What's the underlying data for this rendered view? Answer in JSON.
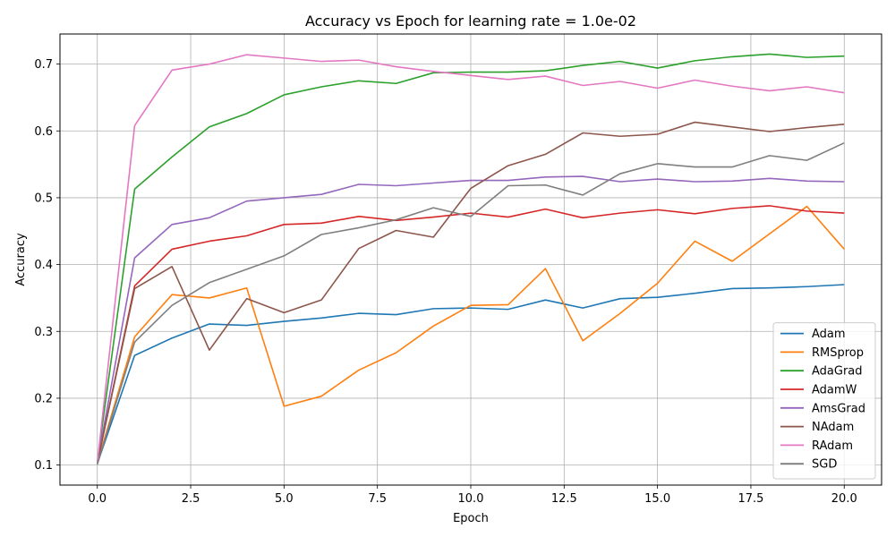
{
  "chart_data": {
    "type": "line",
    "title": "Accuracy vs Epoch for learning rate = 1.0e-02",
    "xlabel": "Epoch",
    "ylabel": "Accuracy",
    "xlim": [
      -1.0,
      21.0
    ],
    "ylim": [
      0.07,
      0.745
    ],
    "xticks": [
      0.0,
      2.5,
      5.0,
      7.5,
      10.0,
      12.5,
      15.0,
      17.5,
      20.0
    ],
    "xtick_labels": [
      "0.0",
      "2.5",
      "5.0",
      "7.5",
      "10.0",
      "12.5",
      "15.0",
      "17.5",
      "20.0"
    ],
    "yticks": [
      0.1,
      0.2,
      0.3,
      0.4,
      0.5,
      0.6,
      0.7
    ],
    "ytick_labels": [
      "0.1",
      "0.2",
      "0.3",
      "0.4",
      "0.5",
      "0.6",
      "0.7"
    ],
    "grid": true,
    "legend_position": "lower-right",
    "x": [
      0,
      1,
      2,
      3,
      4,
      5,
      6,
      7,
      8,
      9,
      10,
      11,
      12,
      13,
      14,
      15,
      16,
      17,
      18,
      19,
      20
    ],
    "series": [
      {
        "name": "Adam",
        "color": "#1f77b4",
        "values": [
          0.102,
          0.264,
          0.29,
          0.311,
          0.309,
          0.315,
          0.32,
          0.327,
          0.325,
          0.334,
          0.335,
          0.333,
          0.347,
          0.335,
          0.349,
          0.351,
          0.357,
          0.364,
          0.365,
          0.367,
          0.37
        ]
      },
      {
        "name": "RMSprop",
        "color": "#ff7f0e",
        "values": [
          0.103,
          0.292,
          0.355,
          0.35,
          0.365,
          0.188,
          0.203,
          0.242,
          0.268,
          0.308,
          0.339,
          0.34,
          0.394,
          0.286,
          0.327,
          0.372,
          0.435,
          0.405,
          0.446,
          0.487,
          0.423
        ]
      },
      {
        "name": "AdaGrad",
        "color": "#2ca02c",
        "values": [
          0.105,
          0.513,
          0.561,
          0.606,
          0.626,
          0.654,
          0.666,
          0.675,
          0.671,
          0.687,
          0.688,
          0.688,
          0.69,
          0.698,
          0.704,
          0.694,
          0.705,
          0.711,
          0.715,
          0.71,
          0.712
        ]
      },
      {
        "name": "AdamW",
        "color": "#d62728",
        "values": [
          0.103,
          0.368,
          0.423,
          0.435,
          0.443,
          0.46,
          0.462,
          0.472,
          0.466,
          0.471,
          0.477,
          0.471,
          0.483,
          0.47,
          0.477,
          0.482,
          0.476,
          0.484,
          0.488,
          0.48,
          0.477
        ]
      },
      {
        "name": "AmsGrad",
        "color": "#9467bd",
        "values": [
          0.104,
          0.41,
          0.46,
          0.47,
          0.495,
          0.5,
          0.505,
          0.52,
          0.518,
          0.522,
          0.526,
          0.526,
          0.531,
          0.532,
          0.524,
          0.528,
          0.524,
          0.525,
          0.529,
          0.525,
          0.524
        ]
      },
      {
        "name": "NAdam",
        "color": "#8c564b",
        "values": [
          0.103,
          0.364,
          0.397,
          0.272,
          0.349,
          0.328,
          0.347,
          0.424,
          0.451,
          0.441,
          0.514,
          0.548,
          0.565,
          0.597,
          0.592,
          0.595,
          0.613,
          0.606,
          0.599,
          0.605,
          0.61
        ]
      },
      {
        "name": "RAdam",
        "color": "#e377c2",
        "values": [
          0.103,
          0.608,
          0.691,
          0.7,
          0.714,
          0.709,
          0.704,
          0.706,
          0.696,
          0.689,
          0.683,
          0.677,
          0.682,
          0.668,
          0.674,
          0.664,
          0.676,
          0.667,
          0.66,
          0.666,
          0.657
        ]
      },
      {
        "name": "SGD",
        "color": "#7f7f7f",
        "values": [
          0.101,
          0.284,
          0.339,
          0.373,
          0.393,
          0.413,
          0.445,
          0.455,
          0.467,
          0.485,
          0.472,
          0.518,
          0.519,
          0.504,
          0.536,
          0.551,
          0.546,
          0.546,
          0.563,
          0.556,
          0.582
        ]
      }
    ]
  }
}
